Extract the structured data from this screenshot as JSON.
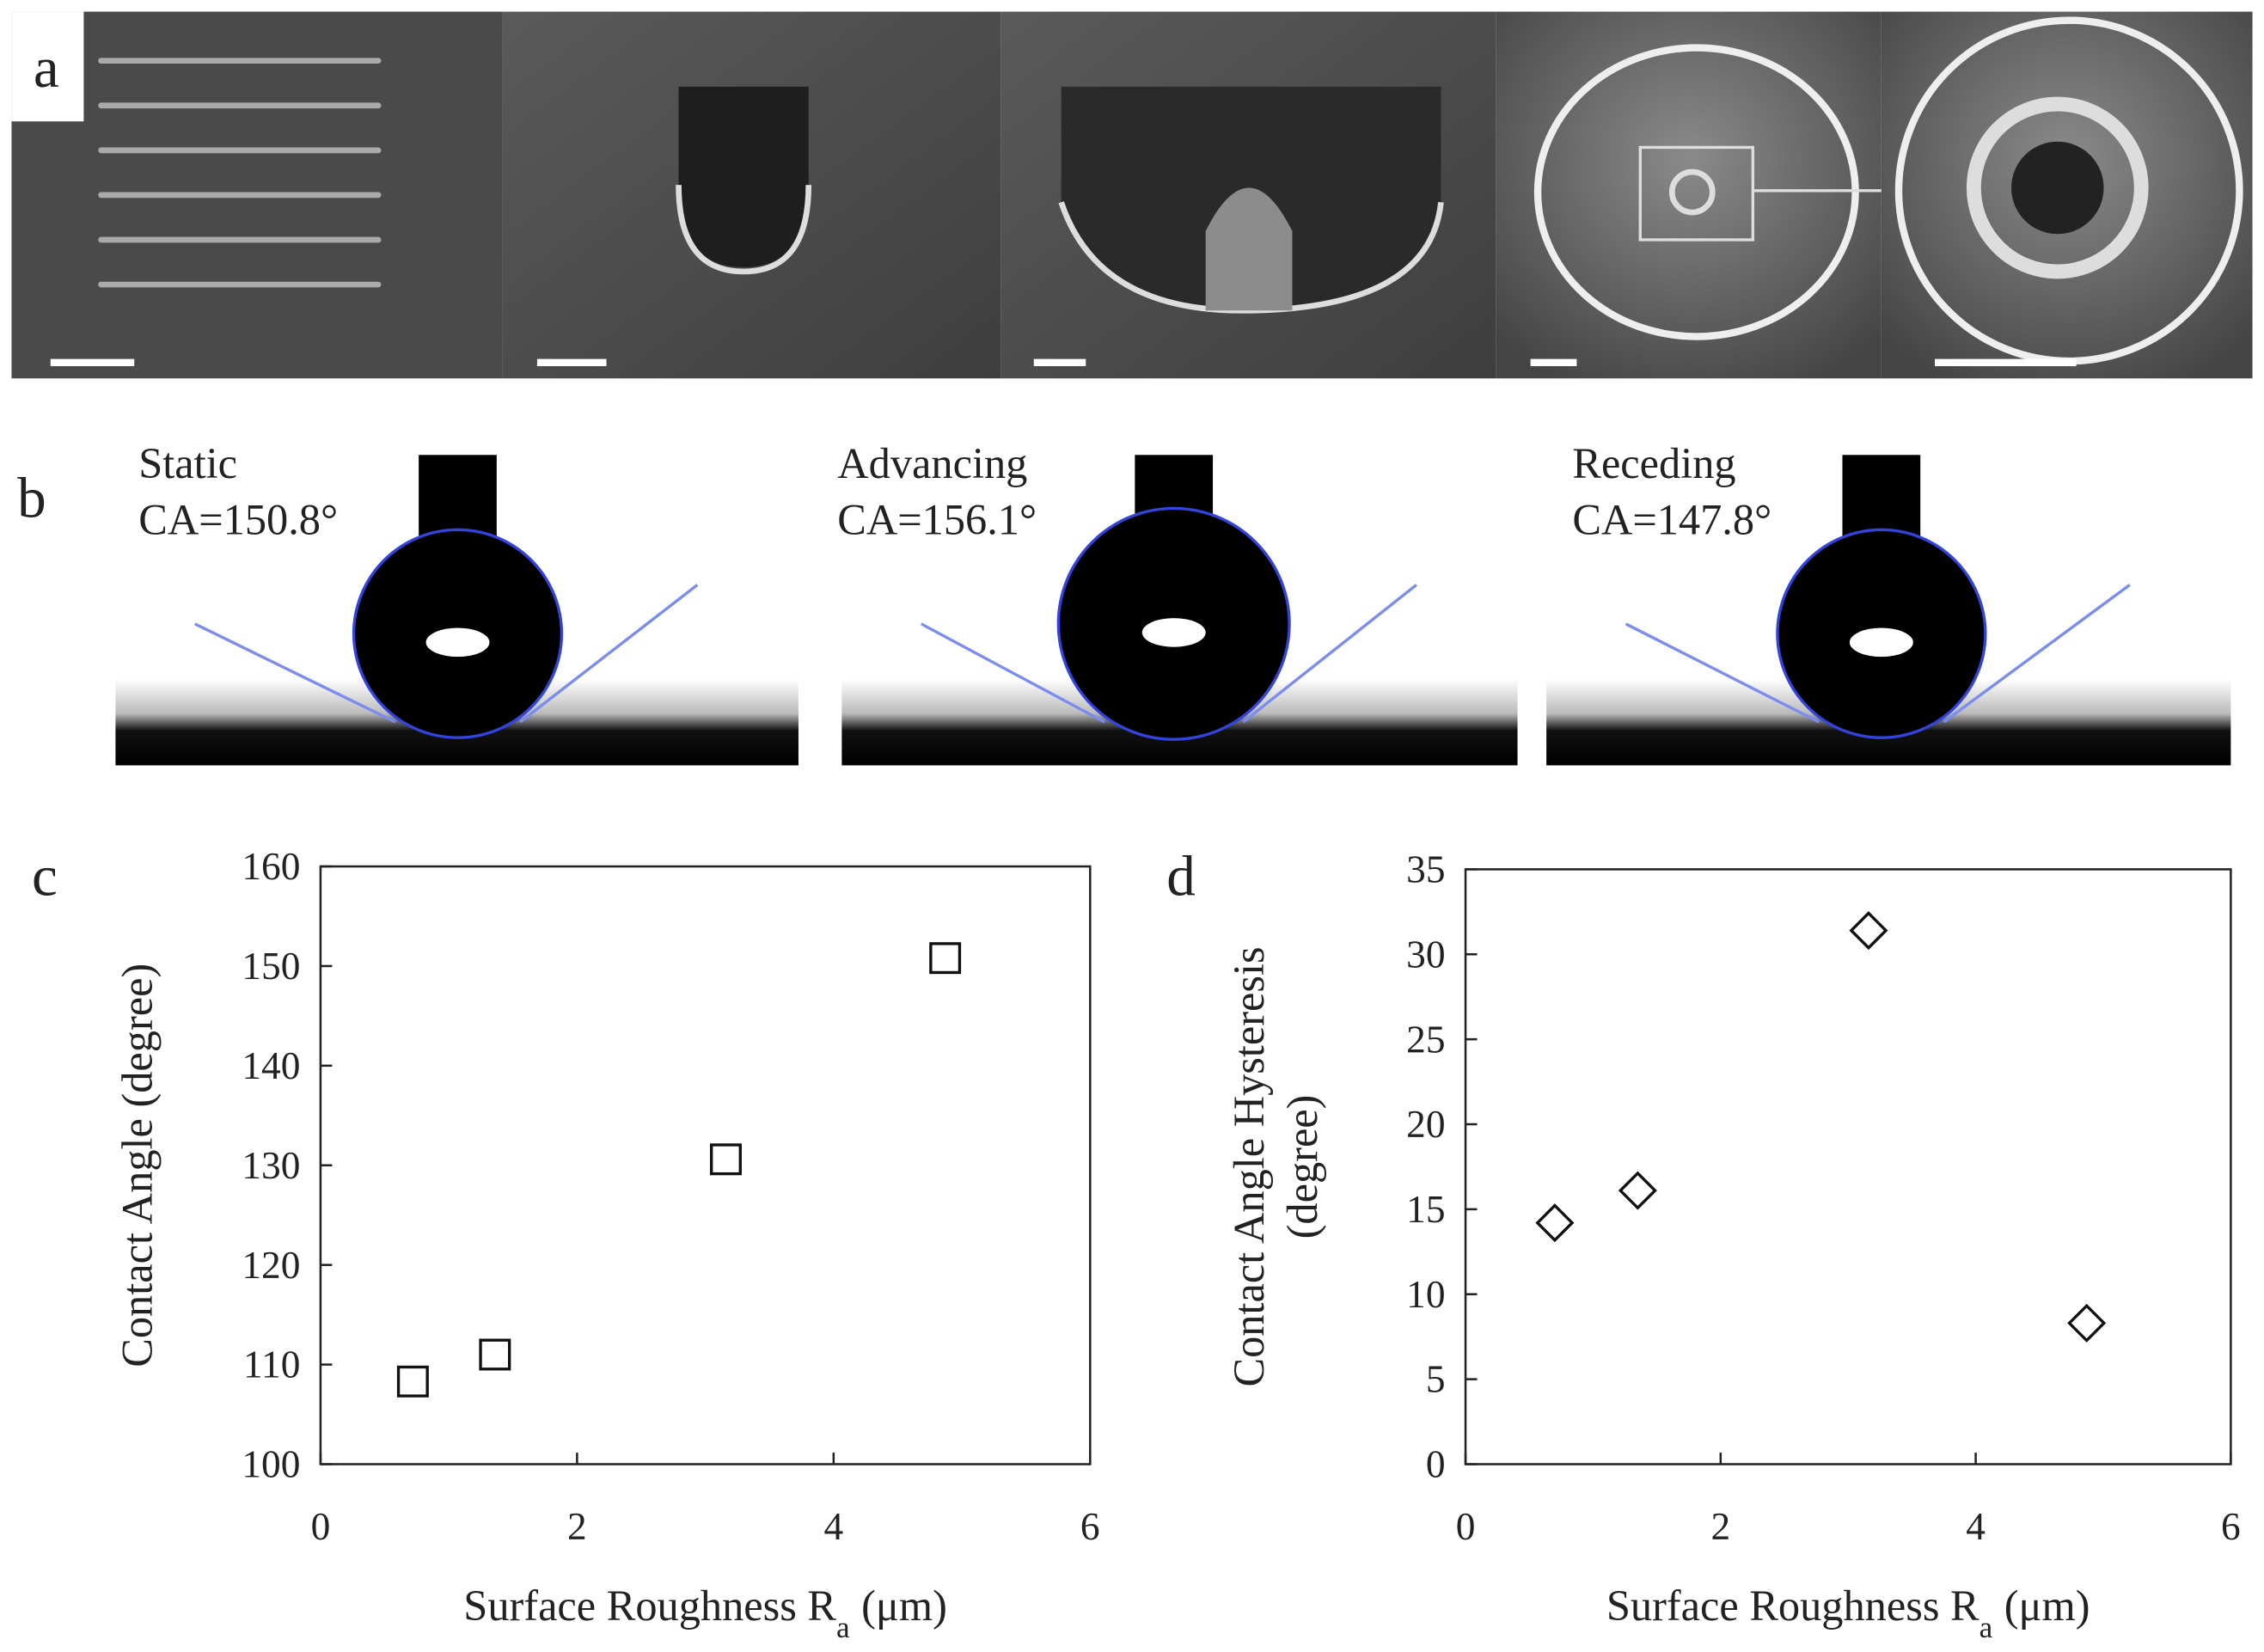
{
  "panels": {
    "a": {
      "label": "a"
    },
    "b": {
      "label": "b",
      "droplets": [
        {
          "name": "Static",
          "ca": "CA=150.8°"
        },
        {
          "name": "Advancing",
          "ca": "CA=156.1°"
        },
        {
          "name": "Receding",
          "ca": "CA=147.8°"
        }
      ]
    }
  },
  "chart_data": [
    {
      "type": "scatter",
      "panel_label": "c",
      "marker": "square",
      "xlabel": {
        "text": "Surface Roughness R",
        "subscript": "a",
        "unit": "(μm)"
      },
      "ylabel": [
        "Contact Angle (degree)"
      ],
      "x": [
        0.72,
        1.36,
        3.16,
        4.87
      ],
      "values": [
        108.3,
        111.0,
        130.6,
        150.8
      ],
      "xlim": [
        0,
        6
      ],
      "xticks": [
        0,
        2,
        4,
        6
      ],
      "ylim": [
        100,
        160
      ],
      "yticks": [
        100,
        110,
        120,
        130,
        140,
        150,
        160
      ]
    },
    {
      "type": "scatter",
      "panel_label": "d",
      "marker": "diamond",
      "xlabel": {
        "text": "Surface Roughness R",
        "subscript": "a",
        "unit": "(μm)"
      },
      "ylabel": [
        "Contact Angle Hysteresis",
        "(degree)"
      ],
      "x": [
        0.7,
        1.35,
        3.16,
        4.87
      ],
      "values": [
        14.2,
        16.1,
        31.4,
        8.3
      ],
      "xlim": [
        0,
        6
      ],
      "xticks": [
        0,
        2,
        4,
        6
      ],
      "ylim": [
        0,
        35
      ],
      "yticks": [
        0,
        5,
        10,
        15,
        20,
        25,
        30,
        35
      ]
    }
  ]
}
